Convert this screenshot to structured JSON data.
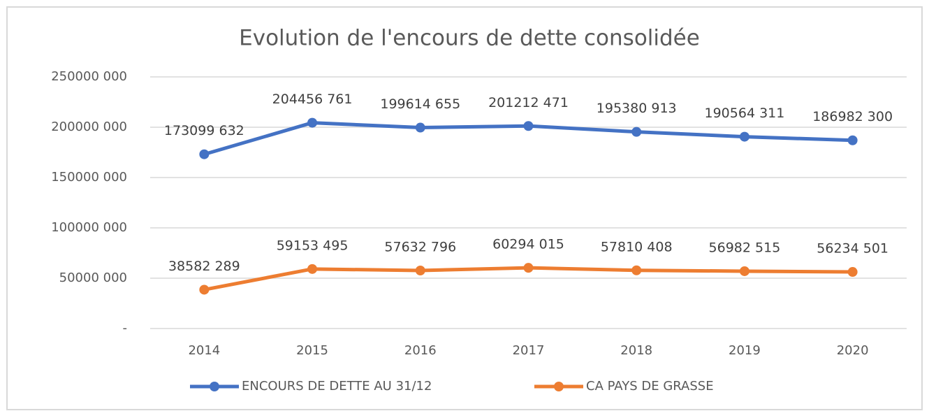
{
  "chart_data": {
    "type": "line",
    "title": "Evolution de l'encours de dette consolidée",
    "categories": [
      "2014",
      "2015",
      "2016",
      "2017",
      "2018",
      "2019",
      "2020"
    ],
    "series": [
      {
        "name": "ENCOURS DE DETTE AU 31/12",
        "color": "#4472c4",
        "values": [
          173099632,
          204456761,
          199614655,
          201212471,
          195380913,
          190564311,
          186982300
        ],
        "value_labels": [
          "173099 632",
          "204456 761",
          "199614 655",
          "201212 471",
          "195380 913",
          "190564 311",
          "186982 300"
        ]
      },
      {
        "name": "CA PAYS DE GRASSE",
        "color": "#ed7d31",
        "values": [
          38582289,
          59153495,
          57632796,
          60294015,
          57810408,
          56982515,
          56234501
        ],
        "value_labels": [
          "38582 289",
          "59153 495",
          "57632 796",
          "60294 015",
          "57810 408",
          "56982 515",
          "56234 501"
        ]
      }
    ],
    "ylim": [
      0,
      250000000
    ],
    "yticks": [
      {
        "value": 0,
        "label": "-"
      },
      {
        "value": 50000000,
        "label": "50000 000"
      },
      {
        "value": 100000000,
        "label": "100000 000"
      },
      {
        "value": 150000000,
        "label": "150000 000"
      },
      {
        "value": 200000000,
        "label": "200000 000"
      },
      {
        "value": 250000000,
        "label": "250000 000"
      }
    ],
    "grid": true,
    "legend": "bottom"
  }
}
